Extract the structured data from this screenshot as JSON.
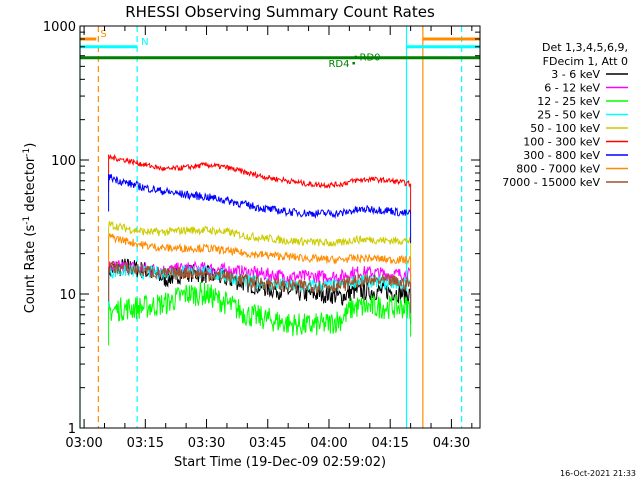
{
  "chart_data": {
    "type": "line",
    "title": "RHESSI Observing Summary Count Rates",
    "xlabel": "Start Time (19-Dec-09 02:59:02)",
    "ylabel_main": "Count Rate (s",
    "ylabel_sup1": "-1",
    "ylabel_mid": " detector",
    "ylabel_sup2": "-1",
    "ylabel_end": ")",
    "y_scale": "log",
    "ylim": [
      1,
      1000
    ],
    "x_unit": "minutes after 03:00",
    "xlim": [
      -1,
      97
    ],
    "x_ticks": [
      {
        "x": 0,
        "label": "03:00"
      },
      {
        "x": 15,
        "label": "03:15"
      },
      {
        "x": 30,
        "label": "03:30"
      },
      {
        "x": 45,
        "label": "03:45"
      },
      {
        "x": 60,
        "label": "04:00"
      },
      {
        "x": 75,
        "label": "04:15"
      },
      {
        "x": 90,
        "label": "04:30"
      }
    ],
    "y_ticks": [
      {
        "y": 1,
        "label": "1"
      },
      {
        "y": 10,
        "label": "10"
      },
      {
        "y": 100,
        "label": "100"
      },
      {
        "y": 1000,
        "label": "1000"
      }
    ],
    "legend_header": [
      "Det 1,3,4,5,6,9,",
      "FDecim 1, Att 0"
    ],
    "legend_position": "right",
    "series": [
      {
        "name": "3 - 6 keV",
        "color": "#000000",
        "x": [
          6,
          10,
          15,
          20,
          25,
          30,
          35,
          40,
          45,
          50,
          55,
          60,
          63,
          66,
          70,
          75,
          78,
          80
        ],
        "y": [
          15,
          16,
          15,
          13,
          14.5,
          14,
          13,
          12,
          11,
          10.5,
          10,
          10,
          9.5,
          10.5,
          10.5,
          10.5,
          10,
          10
        ]
      },
      {
        "name": "6 - 12 keV",
        "color": "#ff00ff",
        "x": [
          6,
          10,
          15,
          20,
          25,
          30,
          35,
          40,
          45,
          50,
          55,
          60,
          63,
          66,
          70,
          75,
          78,
          80
        ],
        "y": [
          16,
          16,
          15.5,
          15,
          15.5,
          15.5,
          15,
          14.5,
          14,
          13.5,
          13.5,
          13.5,
          13.5,
          14.5,
          14.5,
          14,
          14,
          14
        ]
      },
      {
        "name": "12 - 25 keV",
        "color": "#00ff00",
        "x": [
          6,
          10,
          15,
          20,
          25,
          30,
          35,
          40,
          45,
          50,
          55,
          60,
          63,
          66,
          70,
          75,
          78,
          80
        ],
        "y": [
          7.5,
          7.8,
          8,
          8.5,
          10,
          10,
          8.5,
          7,
          6.5,
          6,
          5.8,
          6,
          6.5,
          8,
          8,
          8,
          8,
          8
        ]
      },
      {
        "name": "25 - 50 keV",
        "color": "#00ffff",
        "x": [
          6,
          10,
          15,
          20,
          25,
          30,
          35,
          40,
          45,
          50,
          55,
          60,
          63,
          66,
          70,
          75,
          78,
          80
        ],
        "y": [
          14.5,
          15,
          14.5,
          14.5,
          15,
          14.5,
          13.5,
          12.5,
          12,
          11.5,
          11.5,
          11.5,
          11.5,
          12.5,
          12.5,
          12,
          12,
          12
        ]
      },
      {
        "name": "50 - 100 keV",
        "color": "#cccc00",
        "x": [
          6,
          10,
          15,
          20,
          25,
          30,
          35,
          40,
          45,
          50,
          55,
          60,
          63,
          66,
          70,
          75,
          78,
          80
        ],
        "y": [
          33,
          31,
          29,
          29,
          30,
          30,
          29,
          27,
          26,
          25,
          24.5,
          24,
          24,
          25.5,
          25.5,
          25,
          25,
          25
        ]
      },
      {
        "name": "100 - 300 keV",
        "color": "#ff0000",
        "x": [
          6,
          10,
          15,
          20,
          25,
          30,
          35,
          40,
          45,
          50,
          55,
          60,
          63,
          66,
          70,
          75,
          78,
          80
        ],
        "y": [
          105,
          100,
          92,
          85,
          88,
          92,
          88,
          80,
          74,
          70,
          66,
          65,
          66,
          70,
          72,
          70,
          68,
          66
        ]
      },
      {
        "name": "300 - 800 keV",
        "color": "#0000ff",
        "x": [
          6,
          10,
          15,
          20,
          25,
          30,
          35,
          40,
          45,
          50,
          55,
          60,
          63,
          66,
          70,
          75,
          78,
          80
        ],
        "y": [
          75,
          68,
          62,
          58,
          55,
          53,
          50,
          46,
          43,
          41,
          40,
          40,
          40,
          42,
          43,
          42,
          40,
          40
        ]
      },
      {
        "name": "800 - 7000 keV",
        "color": "#ff8c00",
        "x": [
          6,
          10,
          15,
          20,
          25,
          30,
          35,
          40,
          45,
          50,
          55,
          60,
          63,
          66,
          70,
          75,
          78,
          80
        ],
        "y": [
          27,
          25,
          23,
          22,
          22,
          22,
          21,
          20,
          19.5,
          19,
          18.5,
          18,
          18,
          18.5,
          18.5,
          18,
          18,
          18
        ]
      },
      {
        "name": "7000 - 15000 keV",
        "color": "#a0522d",
        "x": [
          6,
          10,
          15,
          20,
          25,
          30,
          35,
          40,
          45,
          50,
          55,
          60,
          63,
          66,
          70,
          75,
          78,
          80
        ],
        "y": [
          16,
          15.5,
          15,
          14,
          14.5,
          14,
          13.5,
          12.5,
          12,
          11.5,
          11.5,
          11.5,
          11.5,
          12.5,
          12.5,
          12.5,
          12,
          12
        ]
      }
    ],
    "flag_lines": [
      {
        "label": "S",
        "color": "#ff8c00",
        "x_start": -1,
        "x_end": 3,
        "y": 800
      },
      {
        "label": "",
        "color": "#ff8c00",
        "x_start": 83,
        "x_end": 97,
        "y": 800
      },
      {
        "label": "N",
        "color": "#00ffff",
        "x_start": -1,
        "x_end": 13,
        "y": 700
      },
      {
        "label": "",
        "color": "#00ffff",
        "x_start": 79,
        "x_end": 97,
        "y": 700
      },
      {
        "label": "",
        "color": "#008000",
        "x_start": -1,
        "x_end": 97,
        "y": 580
      }
    ],
    "markers": [
      {
        "label": "RD0",
        "x": 66.5,
        "y": 590,
        "color": "#008000"
      },
      {
        "label": "RD4",
        "x": 66,
        "y": 530,
        "color": "#008000"
      }
    ],
    "vlines": [
      {
        "x": -1,
        "color": "#00ffff",
        "dash": false
      },
      {
        "x": 3.5,
        "color": "#ff8c00",
        "dash": true
      },
      {
        "x": 13,
        "color": "#00ffff",
        "dash": true
      },
      {
        "x": 79,
        "color": "#00ffff",
        "dash": false
      },
      {
        "x": 83,
        "color": "#ff8c00",
        "dash": false
      },
      {
        "x": 92.5,
        "color": "#00ffff",
        "dash": true
      }
    ],
    "timestamp": "16-Oct-2021 21:33"
  }
}
